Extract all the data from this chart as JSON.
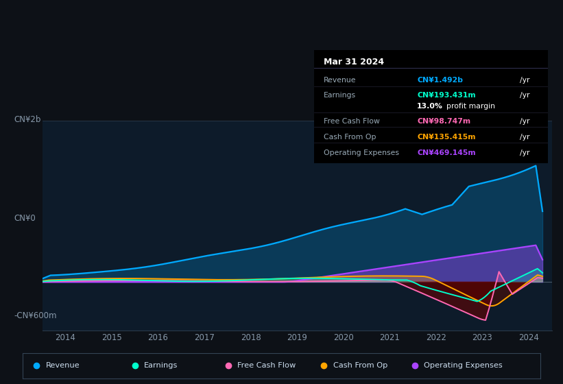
{
  "bg_color": "#0d1117",
  "chart_bg": "#0d1b2a",
  "ylabel_top": "CN¥2b",
  "ylabel_zero": "CN¥0",
  "ylabel_neg": "-CN¥600m",
  "ylim": [
    -600,
    2000
  ],
  "xmin": 2013.5,
  "xmax": 2024.5,
  "xticks": [
    2014,
    2015,
    2016,
    2017,
    2018,
    2019,
    2020,
    2021,
    2022,
    2023,
    2024
  ],
  "legend": [
    {
      "label": "Revenue",
      "color": "#00aaff"
    },
    {
      "label": "Earnings",
      "color": "#00ffcc"
    },
    {
      "label": "Free Cash Flow",
      "color": "#ff69b4"
    },
    {
      "label": "Cash From Op",
      "color": "#ffa500"
    },
    {
      "label": "Operating Expenses",
      "color": "#aa44ff"
    }
  ],
  "tooltip": {
    "title": "Mar 31 2024",
    "rows": [
      {
        "label": "Revenue",
        "value": "CN¥1.492b",
        "color": "#00aaff"
      },
      {
        "label": "Earnings",
        "value": "CN¥193.431m",
        "color": "#00ffcc"
      },
      {
        "label": "",
        "value": "13.0% profit margin",
        "color": "#ffffff"
      },
      {
        "label": "Free Cash Flow",
        "value": "CN¥98.747m",
        "color": "#ff69b4"
      },
      {
        "label": "Cash From Op",
        "value": "CN¥135.415m",
        "color": "#ffa500"
      },
      {
        "label": "Operating Expenses",
        "value": "CN¥469.145m",
        "color": "#aa44ff"
      }
    ]
  }
}
